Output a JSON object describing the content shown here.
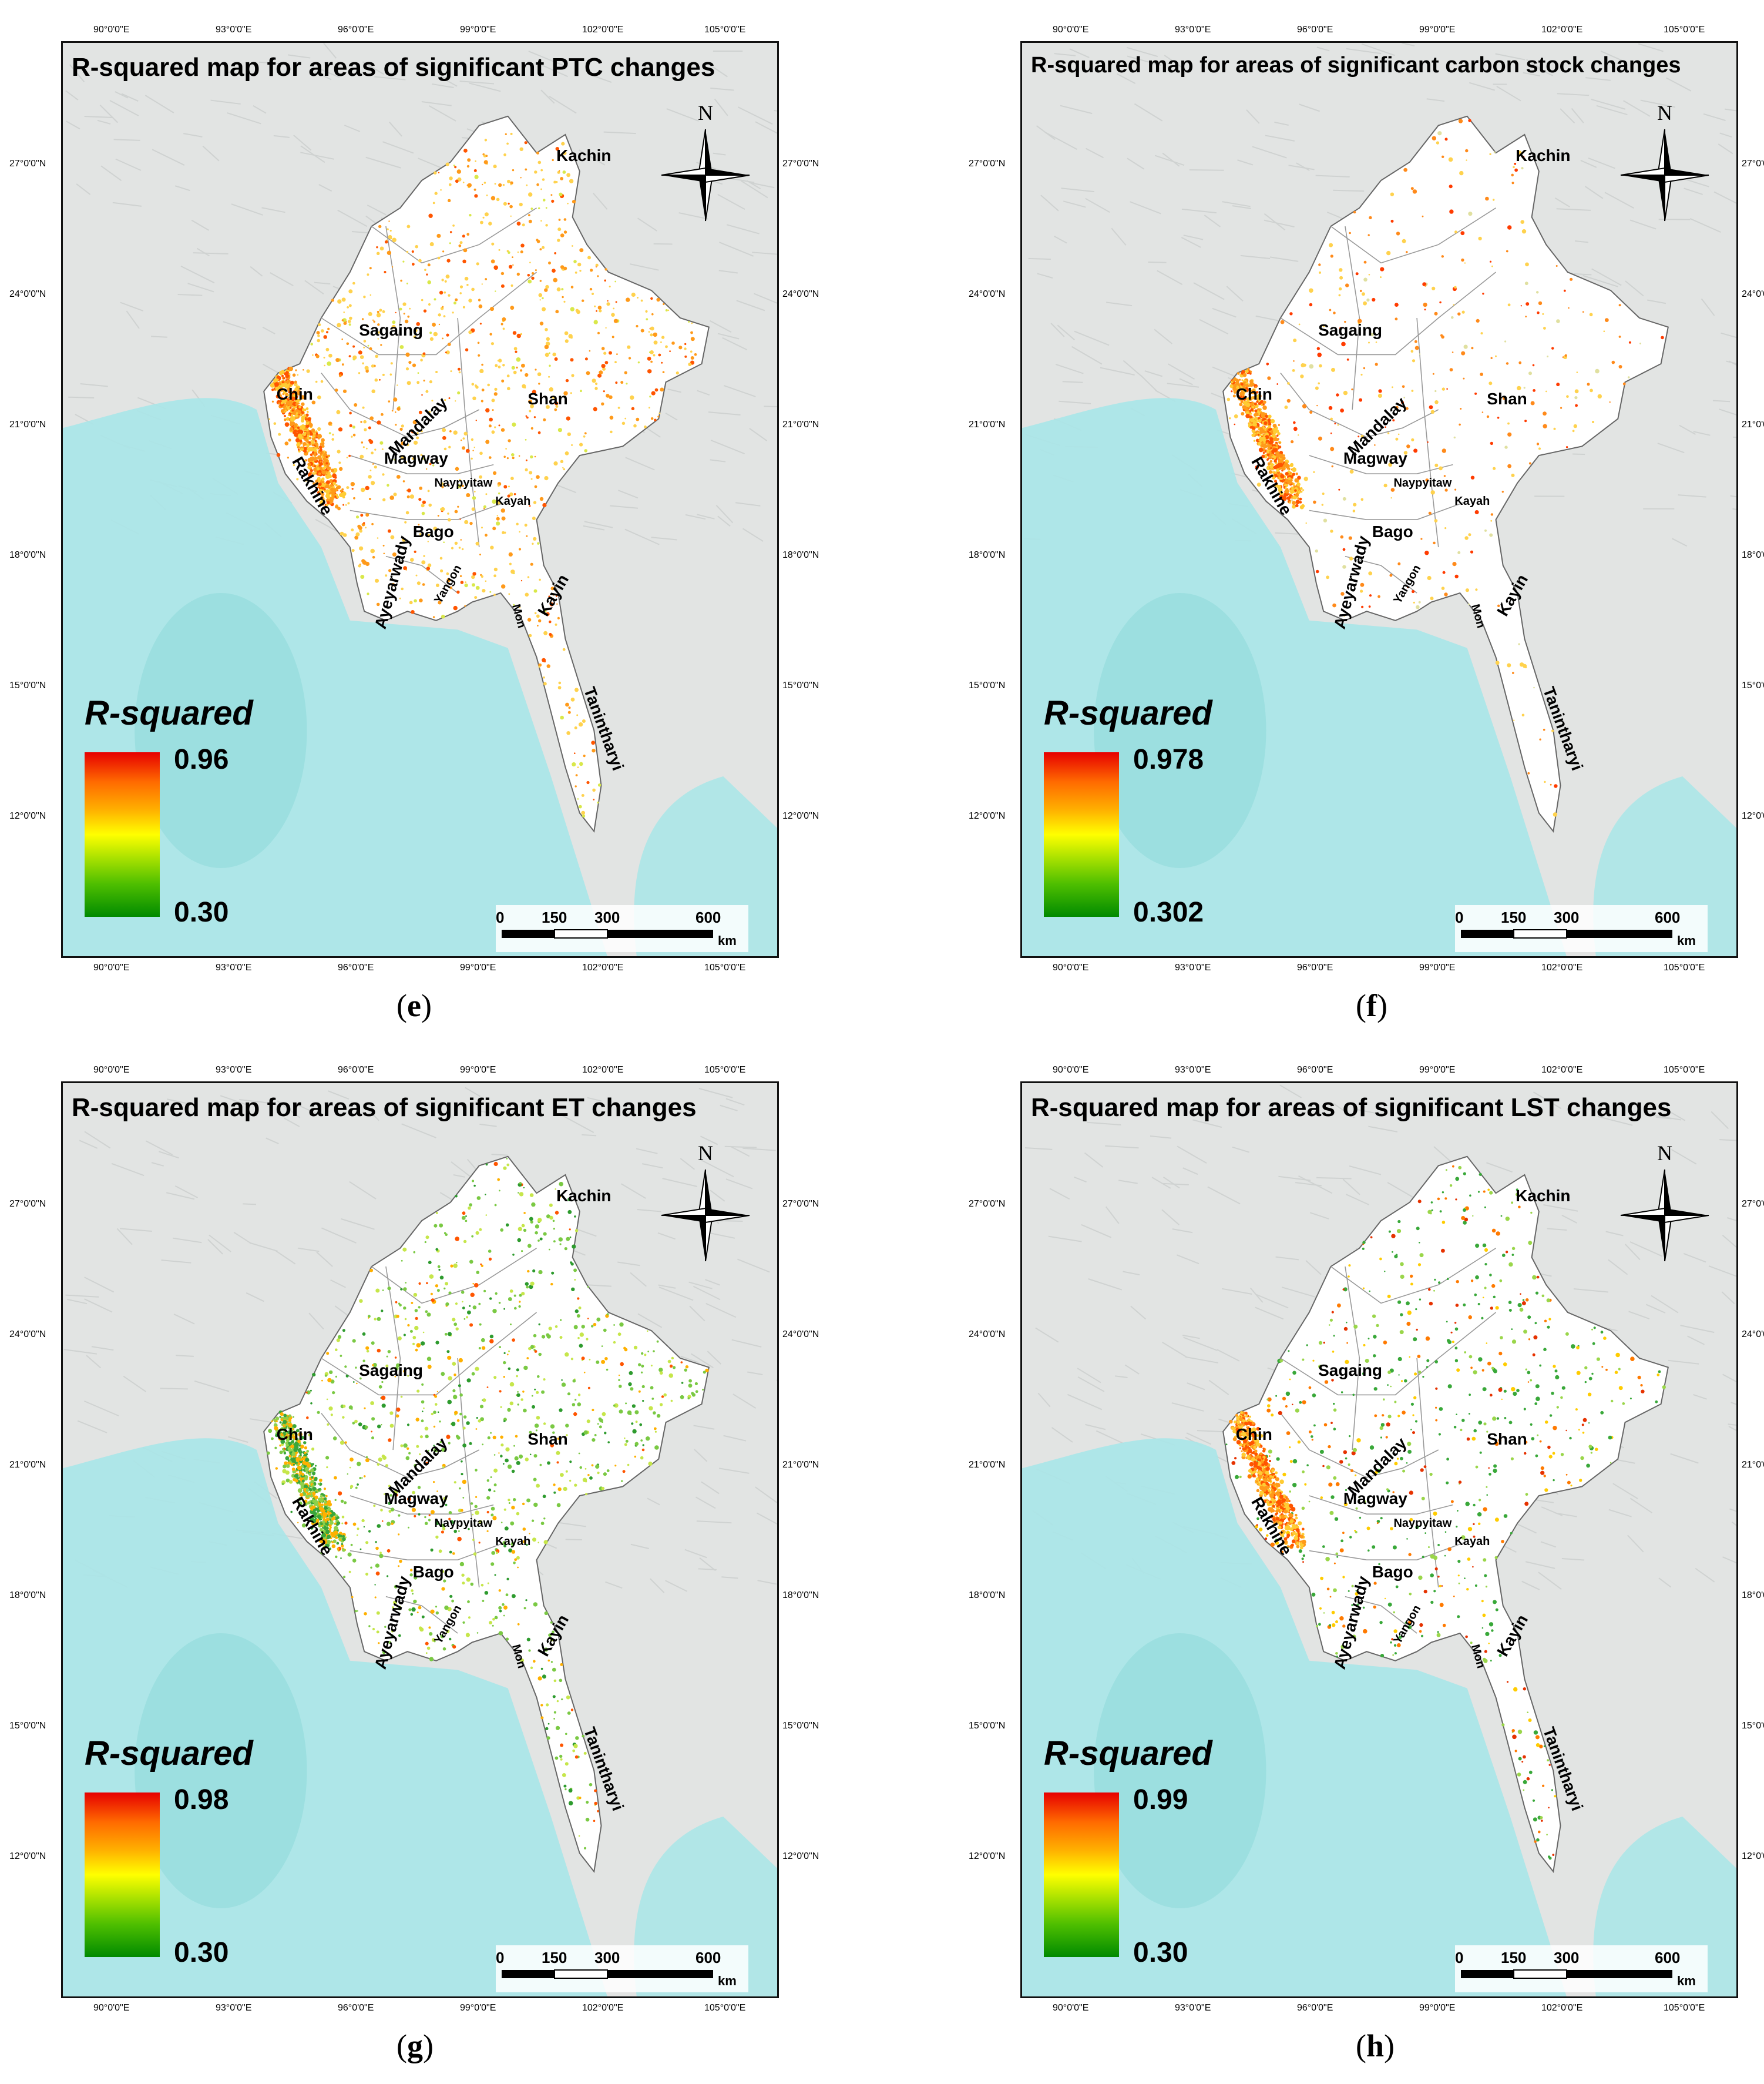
{
  "colors": {
    "sea": "#a8e6e8",
    "land": "#e2e4e3",
    "map_fill": "#ffffff",
    "frame": "#111111"
  },
  "panels": [
    {
      "caption": "e",
      "title": "R-squared map for areas of significant PTC changes",
      "legend_title": "R-squared",
      "max": "0.96",
      "min": "0.30",
      "pattern": "orange"
    },
    {
      "caption": "f",
      "title": "R-squared map for areas of significant carbon stock changes",
      "legend_title": "R-squared",
      "max": "0.978",
      "min": "0.302",
      "pattern": "sparse"
    },
    {
      "caption": "g",
      "title": "R-squared map for areas of significant ET changes",
      "legend_title": "R-squared",
      "max": "0.98",
      "min": "0.30",
      "pattern": "green"
    },
    {
      "caption": "h",
      "title": "R-squared map for areas of significant LST changes",
      "legend_title": "R-squared",
      "max": "0.99",
      "min": "0.30",
      "pattern": "mixed"
    }
  ],
  "lon_ticks": [
    "90°0'0\"E",
    "93°0'0\"E",
    "96°0'0\"E",
    "99°0'0\"E",
    "102°0'0\"E",
    "105°0'0\"E"
  ],
  "lat_ticks": [
    "27°0'0\"N",
    "24°0'0\"N",
    "21°0'0\"N",
    "18°0'0\"N",
    "15°0'0\"N",
    "12°0'0\"N"
  ],
  "regions": [
    "Kachin",
    "Sagaing",
    "Chin",
    "Shan",
    "Mandalay",
    "Magway",
    "Rakhine",
    "Naypyitaw",
    "Kayah",
    "Bago",
    "Ayeyarwady",
    "Yangon",
    "Kayin",
    "Mon",
    "Tanintharyi"
  ],
  "north_label": "N",
  "scale_labels": [
    "0",
    "150",
    "300",
    "600"
  ],
  "scale_unit": "km"
}
